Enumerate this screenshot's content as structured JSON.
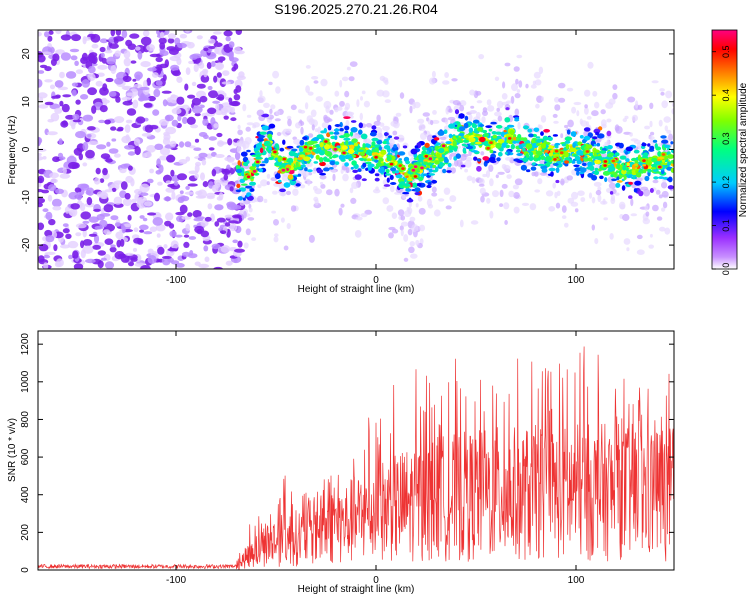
{
  "title": "S196.2025.270.21.26.R04",
  "chart_data": [
    {
      "type": "heatmap",
      "xlabel": "Height of straight line (km)",
      "ylabel": "Frequency (Hz)",
      "xlim": [
        -169,
        149
      ],
      "ylim": [
        -25,
        25
      ],
      "xticks": [
        -100,
        0,
        100
      ],
      "xtick_labels": [
        "-100",
        "0",
        "100"
      ],
      "yticks": [
        -20,
        -10,
        0,
        10,
        20
      ],
      "ytick_labels": [
        "-20",
        "-10",
        "0",
        "10",
        "20"
      ],
      "noise_region_x": [
        -169,
        -69
      ],
      "noise_peak_amplitude": 0.12,
      "signal_region_x": [
        -69,
        149
      ],
      "signal_track": [
        {
          "x": -69,
          "f": -6
        },
        {
          "x": -62,
          "f": -5
        },
        {
          "x": -55,
          "f": 2
        },
        {
          "x": -48,
          "f": -3
        },
        {
          "x": -42,
          "f": -4
        },
        {
          "x": -36,
          "f": -1
        },
        {
          "x": -28,
          "f": 0
        },
        {
          "x": -18,
          "f": 1
        },
        {
          "x": -10,
          "f": 0
        },
        {
          "x": 0,
          "f": -1
        },
        {
          "x": 8,
          "f": -2
        },
        {
          "x": 16,
          "f": -6
        },
        {
          "x": 24,
          "f": -3
        },
        {
          "x": 32,
          "f": -1
        },
        {
          "x": 40,
          "f": 2
        },
        {
          "x": 48,
          "f": 3
        },
        {
          "x": 56,
          "f": 1
        },
        {
          "x": 66,
          "f": 3
        },
        {
          "x": 74,
          "f": 1
        },
        {
          "x": 82,
          "f": 0
        },
        {
          "x": 90,
          "f": -1
        },
        {
          "x": 98,
          "f": 0
        },
        {
          "x": 108,
          "f": -1
        },
        {
          "x": 116,
          "f": -3
        },
        {
          "x": 126,
          "f": -4
        },
        {
          "x": 136,
          "f": -3
        },
        {
          "x": 144,
          "f": -2
        },
        {
          "x": 149,
          "f": -3
        }
      ],
      "signal_peak_amplitude": 0.55,
      "colorbar": {
        "label": "Normalized spectral amplitude",
        "range": [
          0.0,
          0.55
        ],
        "ticks": [
          0.0,
          0.1,
          0.2,
          0.3,
          0.4,
          0.5
        ],
        "tick_labels": [
          "0.0",
          "0.1",
          "0.2",
          "0.3",
          "0.4",
          "0.5"
        ],
        "colormap": [
          "#ffffff",
          "#9b30ff",
          "#0000ff",
          "#00ccff",
          "#00ff80",
          "#80ff00",
          "#ffff00",
          "#ff8000",
          "#ff0000",
          "#ff0080"
        ]
      }
    },
    {
      "type": "line",
      "xlabel": "Height of straight line (km)",
      "ylabel": "SNR (10 * v/v)",
      "xlim": [
        -169,
        149
      ],
      "ylim": [
        0,
        1270
      ],
      "xticks": [
        -100,
        0,
        100
      ],
      "xtick_labels": [
        "-100",
        "0",
        "100"
      ],
      "yticks": [
        0,
        200,
        400,
        600,
        800,
        1000,
        1200
      ],
      "ytick_labels": [
        "0",
        "200",
        "400",
        "600",
        "800",
        "1000",
        "1200"
      ],
      "series": [
        {
          "name": "SNR",
          "color": "#ee3333",
          "x": [
            -169,
            -150,
            -120,
            -90,
            -70,
            -62,
            -55,
            -50,
            -45,
            -40,
            -35,
            -30,
            -20,
            -10,
            0,
            10,
            20,
            30,
            40,
            50,
            60,
            70,
            80,
            90,
            100,
            110,
            120,
            130,
            140,
            149
          ],
          "mean": [
            15,
            15,
            15,
            15,
            15,
            110,
            150,
            170,
            180,
            190,
            210,
            230,
            260,
            300,
            340,
            370,
            400,
            420,
            430,
            440,
            450,
            450,
            455,
            460,
            460,
            460,
            460,
            460,
            460,
            460
          ],
          "peak": [
            30,
            30,
            30,
            30,
            40,
            280,
            300,
            330,
            570,
            350,
            430,
            480,
            560,
            780,
            860,
            1000,
            1170,
            950,
            1130,
            1100,
            1020,
            1130,
            1110,
            1100,
            1180,
            1270,
            1050,
            1000,
            950,
            1080
          ]
        }
      ]
    }
  ]
}
